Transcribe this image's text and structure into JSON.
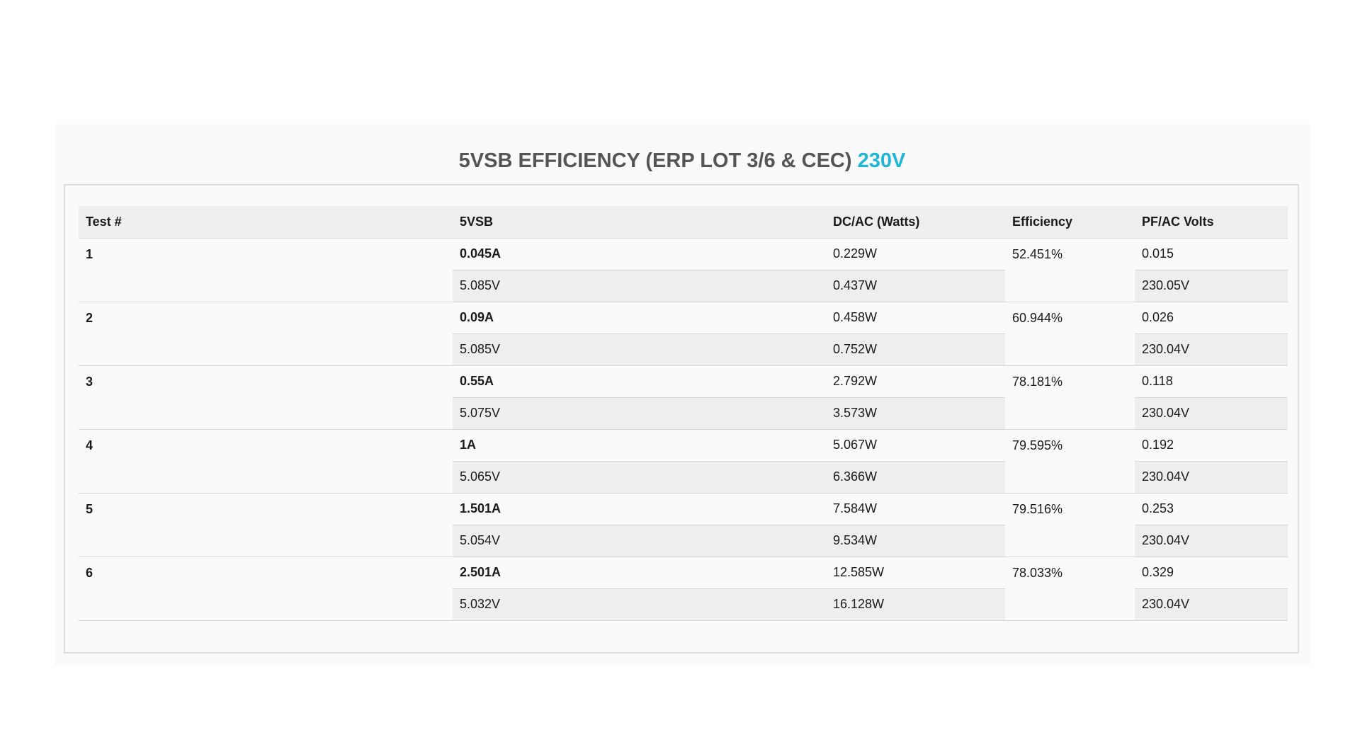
{
  "chart_data": {
    "type": "table",
    "title": "5VSB EFFICIENCY (ERP LOT 3/6 & CEC)",
    "title_accent": "230V",
    "columns": [
      "Test #",
      "5VSB",
      "DC/AC (Watts)",
      "Efficiency",
      "PF/AC Volts"
    ],
    "rows": [
      {
        "test": "1",
        "amps": "0.045A",
        "volts": "5.085V",
        "dc": "0.229W",
        "ac": "0.437W",
        "efficiency": "52.451%",
        "pf": "0.015",
        "ac_volts": "230.05V"
      },
      {
        "test": "2",
        "amps": "0.09A",
        "volts": "5.085V",
        "dc": "0.458W",
        "ac": "0.752W",
        "efficiency": "60.944%",
        "pf": "0.026",
        "ac_volts": "230.04V"
      },
      {
        "test": "3",
        "amps": "0.55A",
        "volts": "5.075V",
        "dc": "2.792W",
        "ac": "3.573W",
        "efficiency": "78.181%",
        "pf": "0.118",
        "ac_volts": "230.04V"
      },
      {
        "test": "4",
        "amps": "1A",
        "volts": "5.065V",
        "dc": "5.067W",
        "ac": "6.366W",
        "efficiency": "79.595%",
        "pf": "0.192",
        "ac_volts": "230.04V"
      },
      {
        "test": "5",
        "amps": "1.501A",
        "volts": "5.054V",
        "dc": "7.584W",
        "ac": "9.534W",
        "efficiency": "79.516%",
        "pf": "0.253",
        "ac_volts": "230.04V"
      },
      {
        "test": "6",
        "amps": "2.501A",
        "volts": "5.032V",
        "dc": "12.585W",
        "ac": "16.128W",
        "efficiency": "78.033%",
        "pf": "0.329",
        "ac_volts": "230.04V"
      }
    ]
  }
}
